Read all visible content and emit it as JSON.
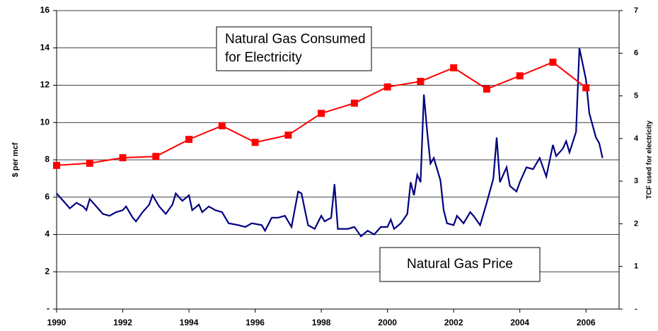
{
  "chart_data": {
    "type": "line",
    "y_label": "$ per mcf",
    "y2_label": "TCF used for electricity",
    "xlim": [
      1990,
      2007
    ],
    "xticks": [
      1990,
      1992,
      1994,
      1996,
      1998,
      2000,
      2002,
      2004,
      2006
    ],
    "ylim": [
      0,
      16
    ],
    "yticks": [
      {
        "value": 0,
        "label": "-"
      },
      2,
      4,
      6,
      8,
      10,
      12,
      14,
      16
    ],
    "y2lim": [
      0,
      7
    ],
    "y2ticks": [
      {
        "value": 0,
        "label": "-"
      },
      1,
      2,
      3,
      4,
      5,
      6,
      7
    ],
    "grid": true,
    "annotations": [
      {
        "lines": [
          "Natural Gas Consumed",
          "for Electricity"
        ]
      },
      {
        "lines": [
          "Natural Gas Price"
        ]
      }
    ],
    "series": [
      {
        "color": "#000080",
        "x": [
          1990.0,
          1990.2,
          1990.4,
          1990.6,
          1990.8,
          1990.9,
          1991.0,
          1991.2,
          1991.4,
          1991.6,
          1991.8,
          1992.0,
          1992.1,
          1992.3,
          1992.4,
          1992.6,
          1992.8,
          1992.9,
          1993.1,
          1993.3,
          1993.5,
          1993.6,
          1993.8,
          1994.0,
          1994.1,
          1994.3,
          1994.4,
          1994.6,
          1994.8,
          1995.0,
          1995.2,
          1995.5,
          1995.7,
          1995.9,
          1996.2,
          1996.3,
          1996.5,
          1996.7,
          1996.9,
          1997.1,
          1997.3,
          1997.4,
          1997.6,
          1997.8,
          1998.0,
          1998.1,
          1998.3,
          1998.4,
          1998.5,
          1998.8,
          1999.0,
          1999.2,
          1999.4,
          1999.6,
          1999.8,
          2000.0,
          2000.1,
          2000.2,
          2000.4,
          2000.6,
          2000.7,
          2000.8,
          2000.9,
          2001.0,
          2001.1,
          2001.2,
          2001.3,
          2001.4,
          2001.6,
          2001.7,
          2001.8,
          2002.0,
          2002.1,
          2002.3,
          2002.5,
          2002.6,
          2002.8,
          2003.0,
          2003.2,
          2003.3,
          2003.4,
          2003.6,
          2003.7,
          2003.9,
          2004.0,
          2004.2,
          2004.4,
          2004.6,
          2004.8,
          2005.0,
          2005.1,
          2005.3,
          2005.4,
          2005.5,
          2005.7,
          2005.8,
          2006.0,
          2006.1,
          2006.3,
          2006.4,
          2006.5
        ],
        "values": [
          6.2,
          5.8,
          5.4,
          5.7,
          5.5,
          5.3,
          5.9,
          5.5,
          5.1,
          5.0,
          5.2,
          5.3,
          5.5,
          4.9,
          4.7,
          5.2,
          5.6,
          6.1,
          5.5,
          5.1,
          5.6,
          6.2,
          5.8,
          6.1,
          5.3,
          5.6,
          5.2,
          5.5,
          5.3,
          5.2,
          4.6,
          4.5,
          4.4,
          4.6,
          4.5,
          4.2,
          4.9,
          4.9,
          5.0,
          4.4,
          6.3,
          6.2,
          4.5,
          4.3,
          5.0,
          4.7,
          4.9,
          6.7,
          4.3,
          4.3,
          4.4,
          3.9,
          4.2,
          4.0,
          4.4,
          4.4,
          4.8,
          4.3,
          4.6,
          5.1,
          6.8,
          6.1,
          7.2,
          6.8,
          11.5,
          9.5,
          7.8,
          8.1,
          6.9,
          5.3,
          4.6,
          4.5,
          5.0,
          4.6,
          5.2,
          5.0,
          4.5,
          5.7,
          7.0,
          9.2,
          6.8,
          7.6,
          6.6,
          6.3,
          6.8,
          7.6,
          7.5,
          8.1,
          7.1,
          8.8,
          8.2,
          8.6,
          9.0,
          8.4,
          9.5,
          14.0,
          12.3,
          10.5,
          9.2,
          8.9,
          8.1
        ]
      },
      {
        "color": "#ff0000",
        "axis": "y2",
        "x": [
          1990,
          1991,
          1992,
          1993,
          1994,
          1995,
          1996,
          1997,
          1998,
          1999,
          2000,
          2001,
          2002,
          2003,
          2004,
          2005,
          2006
        ],
        "values": [
          3.37,
          3.42,
          3.55,
          3.58,
          3.98,
          4.3,
          3.91,
          4.08,
          4.59,
          4.83,
          5.21,
          5.34,
          5.66,
          5.16,
          5.47,
          5.79,
          5.19
        ]
      }
    ]
  }
}
